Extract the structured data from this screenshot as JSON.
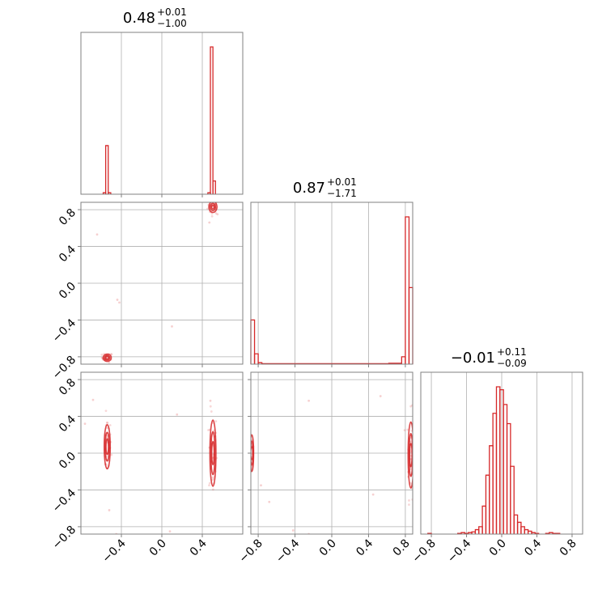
{
  "figure": {
    "type": "corner-plot",
    "line_color": "#d62728",
    "background": "#ffffff"
  },
  "chart_data": [
    {
      "type": "histogram",
      "panel": "diag-1",
      "title": {
        "value": "0.48",
        "plus": "+0.01",
        "minus": "−1.00"
      },
      "xlim": [
        -0.8,
        0.8
      ],
      "bins": [
        {
          "x0": -0.58,
          "x1": -0.555,
          "count": 1
        },
        {
          "x0": -0.555,
          "x1": -0.53,
          "count": 33
        },
        {
          "x0": -0.53,
          "x1": -0.505,
          "count": 1
        },
        {
          "x0": 0.455,
          "x1": 0.48,
          "count": 1
        },
        {
          "x0": 0.48,
          "x1": 0.505,
          "count": 100
        },
        {
          "x0": 0.505,
          "x1": 0.53,
          "count": 9
        }
      ],
      "xticks": [
        -0.4,
        0.0,
        0.4
      ]
    },
    {
      "type": "scatter-density",
      "panel": "row2-col1",
      "xlim": [
        -0.8,
        0.8
      ],
      "ylim": [
        -0.88,
        0.88
      ],
      "yticks": [
        -0.8,
        -0.4,
        0.0,
        0.4,
        0.8
      ],
      "ytick_labels": [
        "−0.8",
        "−0.4",
        "0.0",
        "0.4",
        "0.8"
      ],
      "clusters": [
        {
          "cx": 0.505,
          "cy": 0.83,
          "sx": 0.02,
          "sy": 0.03,
          "n": 30
        },
        {
          "cx": -0.54,
          "cy": -0.81,
          "sx": 0.02,
          "sy": 0.02,
          "n": 25
        }
      ],
      "outliers": [
        [
          -0.64,
          0.53
        ],
        [
          -0.44,
          -0.18
        ],
        [
          -0.42,
          -0.21
        ],
        [
          0.1,
          -0.47
        ],
        [
          0.55,
          0.75
        ],
        [
          0.47,
          0.66
        ]
      ]
    },
    {
      "type": "histogram",
      "panel": "diag-2",
      "title": {
        "value": "0.87",
        "plus": "+0.01",
        "minus": "−1.71"
      },
      "xlim": [
        -0.88,
        0.88
      ],
      "bins": [
        {
          "x0": -0.88,
          "x1": -0.84,
          "count": 30
        },
        {
          "x0": -0.84,
          "x1": -0.8,
          "count": 7
        },
        {
          "x0": -0.8,
          "x1": -0.76,
          "count": 1
        },
        {
          "x0": -0.76,
          "x1": 0.62,
          "count": 0.3
        },
        {
          "x0": 0.62,
          "x1": 0.76,
          "count": 0.6
        },
        {
          "x0": 0.76,
          "x1": 0.8,
          "count": 5
        },
        {
          "x0": 0.8,
          "x1": 0.84,
          "count": 100
        },
        {
          "x0": 0.84,
          "x1": 0.88,
          "count": 52
        }
      ]
    },
    {
      "type": "scatter-density",
      "panel": "row3-col1",
      "xlim": [
        -0.8,
        0.8
      ],
      "ylim": [
        -0.88,
        0.88
      ],
      "xticks": [
        -0.4,
        0.0,
        0.4
      ],
      "xtick_labels": [
        "−0.4",
        "0.0",
        "0.4"
      ],
      "yticks": [
        -0.8,
        -0.4,
        0.0,
        0.4,
        0.8
      ],
      "ytick_labels": [
        "−0.8",
        "−0.4",
        "0.0",
        "0.4",
        "0.8"
      ],
      "clusters": [
        {
          "cx": -0.54,
          "cy": 0.07,
          "sx": 0.015,
          "sy": 0.12,
          "n": 35
        },
        {
          "cx": 0.505,
          "cy": 0.0,
          "sx": 0.015,
          "sy": 0.18,
          "n": 45
        }
      ],
      "outliers": [
        [
          -0.68,
          0.58
        ],
        [
          -0.76,
          0.32
        ],
        [
          0.15,
          0.42
        ],
        [
          0.48,
          0.57
        ],
        [
          -0.52,
          -0.62
        ],
        [
          -0.45,
          -0.88
        ],
        [
          0.08,
          -0.85
        ]
      ]
    },
    {
      "type": "scatter-density",
      "panel": "row3-col2",
      "xlim": [
        -0.88,
        0.88
      ],
      "ylim": [
        -0.88,
        0.88
      ],
      "xticks": [
        -0.8,
        -0.4,
        0.0,
        0.4,
        0.8
      ],
      "xtick_labels": [
        "−0.8",
        "−0.4",
        "0.0",
        "0.4",
        "0.8"
      ],
      "clusters": [
        {
          "cx": -0.87,
          "cy": 0.0,
          "sx": 0.01,
          "sy": 0.1,
          "n": 30
        },
        {
          "cx": 0.86,
          "cy": -0.02,
          "sx": 0.015,
          "sy": 0.18,
          "n": 45
        }
      ],
      "outliers": [
        [
          -0.77,
          -0.35
        ],
        [
          -0.68,
          -0.53
        ],
        [
          -0.25,
          0.57
        ],
        [
          0.53,
          0.62
        ],
        [
          0.45,
          -0.45
        ],
        [
          -0.42,
          -0.84
        ],
        [
          -0.25,
          -0.88
        ]
      ]
    },
    {
      "type": "histogram",
      "panel": "diag-3",
      "title": {
        "value": "−0.01",
        "plus": "+0.11",
        "minus": "−0.09"
      },
      "xlim": [
        -0.92,
        0.92
      ],
      "xticks": [
        -0.8,
        -0.4,
        0.0,
        0.4,
        0.8
      ],
      "xtick_labels": [
        "−0.8",
        "−0.4",
        "0.0",
        "0.4",
        "0.8"
      ],
      "bins": [
        {
          "x0": -0.84,
          "x1": -0.8,
          "count": 0.5
        },
        {
          "x0": -0.5,
          "x1": -0.46,
          "count": 0.5
        },
        {
          "x0": -0.46,
          "x1": -0.42,
          "count": 1
        },
        {
          "x0": -0.42,
          "x1": -0.38,
          "count": 0.5
        },
        {
          "x0": -0.38,
          "x1": -0.34,
          "count": 1
        },
        {
          "x0": -0.34,
          "x1": -0.3,
          "count": 1.5
        },
        {
          "x0": -0.3,
          "x1": -0.26,
          "count": 3
        },
        {
          "x0": -0.26,
          "x1": -0.22,
          "count": 5
        },
        {
          "x0": -0.22,
          "x1": -0.18,
          "count": 19
        },
        {
          "x0": -0.18,
          "x1": -0.14,
          "count": 40
        },
        {
          "x0": -0.14,
          "x1": -0.1,
          "count": 60
        },
        {
          "x0": -0.1,
          "x1": -0.06,
          "count": 82
        },
        {
          "x0": -0.06,
          "x1": -0.02,
          "count": 100
        },
        {
          "x0": -0.02,
          "x1": 0.02,
          "count": 98
        },
        {
          "x0": 0.02,
          "x1": 0.06,
          "count": 88
        },
        {
          "x0": 0.06,
          "x1": 0.1,
          "count": 75
        },
        {
          "x0": 0.1,
          "x1": 0.14,
          "count": 46
        },
        {
          "x0": 0.14,
          "x1": 0.18,
          "count": 13
        },
        {
          "x0": 0.18,
          "x1": 0.22,
          "count": 8
        },
        {
          "x0": 0.22,
          "x1": 0.26,
          "count": 5
        },
        {
          "x0": 0.26,
          "x1": 0.3,
          "count": 3
        },
        {
          "x0": 0.3,
          "x1": 0.34,
          "count": 2
        },
        {
          "x0": 0.34,
          "x1": 0.38,
          "count": 1
        },
        {
          "x0": 0.38,
          "x1": 0.42,
          "count": 0.5
        },
        {
          "x0": 0.5,
          "x1": 0.54,
          "count": 0.5
        },
        {
          "x0": 0.54,
          "x1": 0.58,
          "count": 1
        },
        {
          "x0": 0.58,
          "x1": 0.62,
          "count": 0.5
        },
        {
          "x0": 0.62,
          "x1": 0.66,
          "count": 0.5
        }
      ]
    }
  ]
}
